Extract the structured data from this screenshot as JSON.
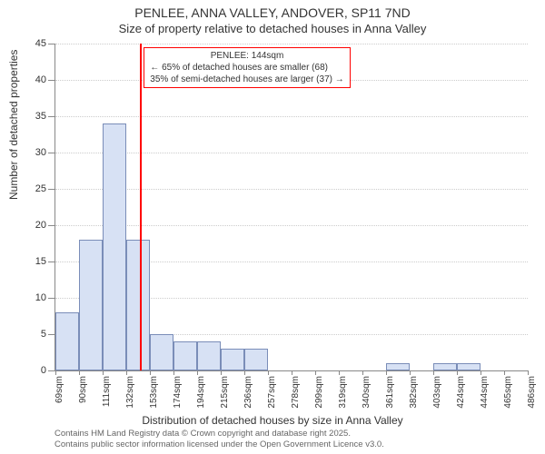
{
  "title_main": "PENLEE, ANNA VALLEY, ANDOVER, SP11 7ND",
  "title_sub": "Size of property relative to detached houses in Anna Valley",
  "ylabel": "Number of detached properties",
  "xlabel": "Distribution of detached houses by size in Anna Valley",
  "attribution_line1": "Contains HM Land Registry data © Crown copyright and database right 2025.",
  "attribution_line2": "Contains public sector information licensed under the Open Government Licence v3.0.",
  "chart": {
    "type": "histogram",
    "background_color": "#ffffff",
    "grid_color": "#cccccc",
    "axis_color": "#888888",
    "bar_fill": "#d7e1f4",
    "bar_border": "#7a8db8",
    "ylim": [
      0,
      45
    ],
    "ytick_step": 5,
    "x_bin_width_sqm": 20.9,
    "x_start_sqm": 69,
    "x_tick_labels": [
      "69sqm",
      "90sqm",
      "111sqm",
      "132sqm",
      "153sqm",
      "174sqm",
      "194sqm",
      "215sqm",
      "236sqm",
      "257sqm",
      "278sqm",
      "299sqm",
      "319sqm",
      "340sqm",
      "361sqm",
      "382sqm",
      "403sqm",
      "424sqm",
      "444sqm",
      "465sqm",
      "486sqm"
    ],
    "values": [
      8,
      18,
      34,
      18,
      5,
      4,
      4,
      3,
      3,
      0,
      0,
      0,
      0,
      0,
      1,
      0,
      1,
      1,
      0,
      0
    ],
    "title_fontsize": 14,
    "subtitle_fontsize": 13,
    "label_fontsize": 12,
    "tick_fontsize": 11
  },
  "marker": {
    "sqm": 144,
    "color": "#ff0000",
    "box_border": "#ff0000",
    "label_title": "PENLEE: 144sqm",
    "line1": "← 65% of detached houses are smaller (68)",
    "line2": "35% of semi-detached houses are larger (37) →"
  }
}
